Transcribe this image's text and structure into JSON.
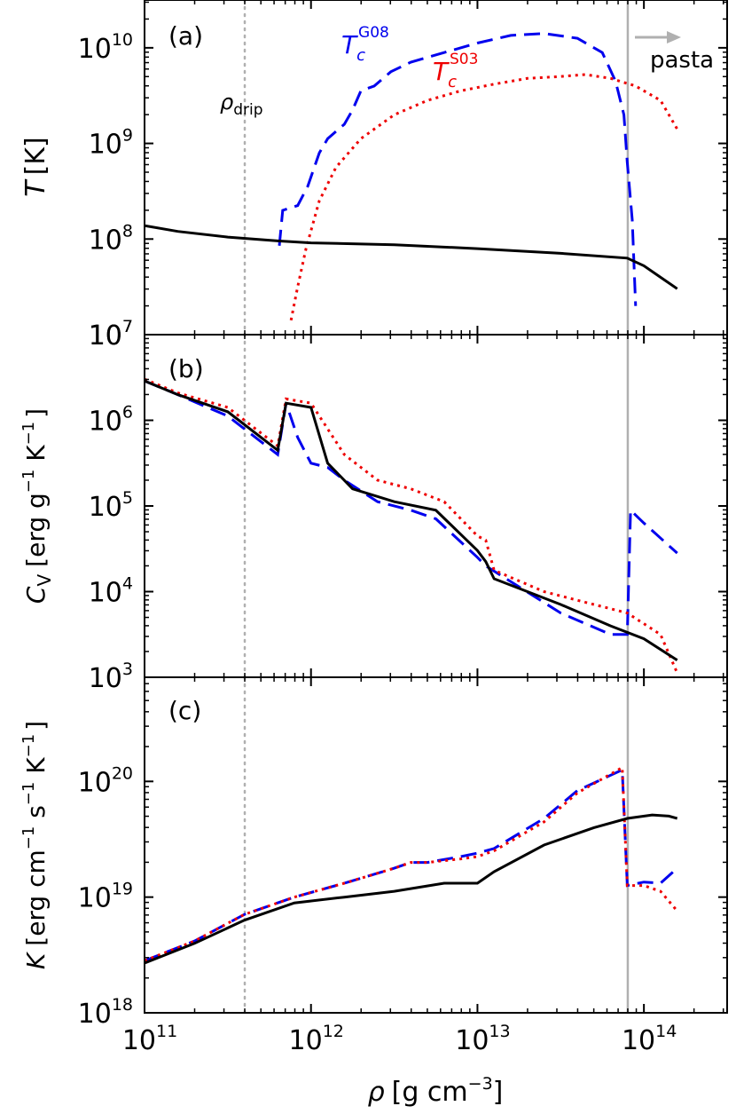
{
  "xlabel": {
    "sym": "ρ",
    "unit": "[g cm",
    "exp": "−3",
    "close": "]"
  },
  "x_ticks": [
    {
      "m": "10",
      "e": "11",
      "v": 11
    },
    {
      "m": "10",
      "e": "12",
      "v": 12
    },
    {
      "m": "10",
      "e": "13",
      "v": 13
    },
    {
      "m": "10",
      "e": "14",
      "v": 14
    }
  ],
  "colors": {
    "total": "#000000",
    "g08": "#0000ee",
    "s03": "#ee0000",
    "pasta": "#b0b0b0",
    "drip": "#b0b0b0"
  },
  "chart_data": [
    {
      "type": "line",
      "panel": "(a)",
      "ylabel": {
        "sym": "T",
        "unit": "[K]"
      },
      "xscale": "log",
      "yscale": "log",
      "xlim_log10": [
        11,
        14.5
      ],
      "ylim_log10": [
        7,
        10.5
      ],
      "y_ticks": [
        {
          "m": "10",
          "e": "7",
          "v": 7
        },
        {
          "m": "10",
          "e": "8",
          "v": 8
        },
        {
          "m": "10",
          "e": "9",
          "v": 9
        },
        {
          "m": "10",
          "e": "10",
          "v": 10
        }
      ],
      "annotations": {
        "drip_label": "ρ",
        "drip_sub": "drip",
        "pasta_label": "pasta",
        "g08_label": "T",
        "g08_sub": "c",
        "g08_sup": "G08",
        "s03_label": "T",
        "s03_sub": "c",
        "s03_sup": "S03"
      },
      "series": [
        {
          "name": "T",
          "style": "solid",
          "points": [
            [
              11,
              8.14
            ],
            [
              11.2,
              8.08
            ],
            [
              11.5,
              8.02
            ],
            [
              11.8,
              7.98
            ],
            [
              12,
              7.96
            ],
            [
              12.5,
              7.94
            ],
            [
              13,
              7.9
            ],
            [
              13.5,
              7.85
            ],
            [
              13.9,
              7.8
            ],
            [
              14.0,
              7.72
            ],
            [
              14.1,
              7.6
            ],
            [
              14.2,
              7.48
            ]
          ]
        },
        {
          "name": "Tc G08",
          "style": "dashed",
          "points": [
            [
              11.81,
              7.93
            ],
            [
              11.83,
              8.3
            ],
            [
              11.92,
              8.35
            ],
            [
              11.98,
              8.55
            ],
            [
              12.05,
              8.9
            ],
            [
              12.1,
              9.05
            ],
            [
              12.2,
              9.2
            ],
            [
              12.25,
              9.35
            ],
            [
              12.3,
              9.55
            ],
            [
              12.38,
              9.6
            ],
            [
              12.48,
              9.75
            ],
            [
              12.6,
              9.85
            ],
            [
              12.8,
              9.95
            ],
            [
              13.0,
              10.05
            ],
            [
              13.2,
              10.13
            ],
            [
              13.4,
              10.15
            ],
            [
              13.6,
              10.1
            ],
            [
              13.75,
              9.95
            ],
            [
              13.83,
              9.65
            ],
            [
              13.88,
              9.3
            ],
            [
              13.9,
              8.8
            ],
            [
              13.93,
              8.2
            ],
            [
              13.95,
              7.3
            ]
          ]
        },
        {
          "name": "Tc S03",
          "style": "dotted",
          "points": [
            [
              11.88,
              7.15
            ],
            [
              11.92,
              7.5
            ],
            [
              11.97,
              7.9
            ],
            [
              12.05,
              8.4
            ],
            [
              12.15,
              8.75
            ],
            [
              12.3,
              9.05
            ],
            [
              12.5,
              9.3
            ],
            [
              12.7,
              9.45
            ],
            [
              12.9,
              9.55
            ],
            [
              13.1,
              9.62
            ],
            [
              13.3,
              9.68
            ],
            [
              13.5,
              9.7
            ],
            [
              13.65,
              9.72
            ],
            [
              13.8,
              9.68
            ],
            [
              13.95,
              9.6
            ],
            [
              14.1,
              9.45
            ],
            [
              14.2,
              9.15
            ]
          ]
        }
      ]
    },
    {
      "type": "line",
      "panel": "(b)",
      "ylabel": {
        "sym": "C",
        "sub": "V",
        "unit": "[erg g",
        "exp1": "−1",
        "unit2": " K",
        "exp2": "−1",
        "close": "]"
      },
      "xscale": "log",
      "yscale": "log",
      "xlim_log10": [
        11,
        14.5
      ],
      "ylim_log10": [
        3,
        7
      ],
      "y_ticks": [
        {
          "m": "10",
          "e": "3",
          "v": 3
        },
        {
          "m": "10",
          "e": "4",
          "v": 4
        },
        {
          "m": "10",
          "e": "5",
          "v": 5
        },
        {
          "m": "10",
          "e": "6",
          "v": 6
        },
        {
          "m": "10",
          "e": "7",
          "v": 7
        }
      ],
      "series": [
        {
          "name": "total",
          "style": "solid",
          "points": [
            [
              11,
              6.46
            ],
            [
              11.2,
              6.3
            ],
            [
              11.5,
              6.1
            ],
            [
              11.8,
              5.65
            ],
            [
              11.85,
              6.2
            ],
            [
              12.0,
              6.15
            ],
            [
              12.1,
              5.5
            ],
            [
              12.25,
              5.2
            ],
            [
              12.5,
              5.05
            ],
            [
              12.75,
              4.95
            ],
            [
              13.0,
              4.48
            ],
            [
              13.05,
              4.35
            ],
            [
              13.1,
              4.15
            ],
            [
              13.5,
              3.85
            ],
            [
              13.8,
              3.6
            ],
            [
              14.0,
              3.45
            ],
            [
              14.2,
              3.2
            ]
          ]
        },
        {
          "name": "G08",
          "style": "dashed",
          "points": [
            [
              11,
              6.46
            ],
            [
              11.2,
              6.3
            ],
            [
              11.5,
              6.05
            ],
            [
              11.8,
              5.6
            ],
            [
              11.85,
              6.2
            ],
            [
              11.92,
              5.8
            ],
            [
              12.0,
              5.5
            ],
            [
              12.1,
              5.45
            ],
            [
              12.2,
              5.3
            ],
            [
              12.4,
              5.05
            ],
            [
              12.6,
              4.95
            ],
            [
              12.75,
              4.85
            ],
            [
              13.0,
              4.4
            ],
            [
              13.05,
              4.3
            ],
            [
              13.5,
              3.75
            ],
            [
              13.8,
              3.5
            ],
            [
              13.9,
              3.5
            ],
            [
              13.92,
              4.95
            ],
            [
              14.0,
              4.8
            ],
            [
              14.2,
              4.45
            ]
          ]
        },
        {
          "name": "S03",
          "style": "dotted",
          "points": [
            [
              11,
              6.48
            ],
            [
              11.2,
              6.32
            ],
            [
              11.5,
              6.15
            ],
            [
              11.8,
              5.7
            ],
            [
              11.85,
              6.25
            ],
            [
              12.0,
              6.2
            ],
            [
              12.2,
              5.6
            ],
            [
              12.4,
              5.3
            ],
            [
              12.6,
              5.2
            ],
            [
              12.8,
              5.05
            ],
            [
              13.0,
              4.65
            ],
            [
              13.05,
              4.6
            ],
            [
              13.1,
              4.25
            ],
            [
              13.4,
              4.0
            ],
            [
              13.7,
              3.85
            ],
            [
              13.9,
              3.75
            ],
            [
              14.1,
              3.5
            ],
            [
              14.2,
              3.05
            ]
          ]
        }
      ]
    },
    {
      "type": "line",
      "panel": "(c)",
      "ylabel": {
        "sym": "K",
        "unit": "[erg cm",
        "exp1": "−1",
        "unit2": " s",
        "exp2": "−1",
        "unit3": " K",
        "exp3": "−1",
        "close": "]"
      },
      "xscale": "log",
      "yscale": "log",
      "xlim_log10": [
        11,
        14.5
      ],
      "ylim_log10": [
        18,
        20.9
      ],
      "y_ticks": [
        {
          "m": "10",
          "e": "18",
          "v": 18
        },
        {
          "m": "10",
          "e": "19",
          "v": 19
        },
        {
          "m": "10",
          "e": "20",
          "v": 20
        }
      ],
      "series": [
        {
          "name": "total",
          "style": "solid",
          "points": [
            [
              11,
              18.43
            ],
            [
              11.3,
              18.6
            ],
            [
              11.6,
              18.8
            ],
            [
              11.9,
              18.95
            ],
            [
              12.2,
              19.0
            ],
            [
              12.5,
              19.05
            ],
            [
              12.8,
              19.12
            ],
            [
              13.0,
              19.12
            ],
            [
              13.1,
              19.22
            ],
            [
              13.4,
              19.45
            ],
            [
              13.7,
              19.6
            ],
            [
              13.9,
              19.68
            ],
            [
              14.05,
              19.71
            ],
            [
              14.15,
              19.7
            ],
            [
              14.2,
              19.68
            ]
          ]
        },
        {
          "name": "G08",
          "style": "dashed",
          "points": [
            [
              11,
              18.45
            ],
            [
              11.3,
              18.62
            ],
            [
              11.6,
              18.85
            ],
            [
              11.9,
              19.0
            ],
            [
              12.2,
              19.12
            ],
            [
              12.5,
              19.25
            ],
            [
              12.6,
              19.3
            ],
            [
              12.7,
              19.3
            ],
            [
              12.9,
              19.35
            ],
            [
              13.0,
              19.38
            ],
            [
              13.1,
              19.42
            ],
            [
              13.4,
              19.68
            ],
            [
              13.6,
              19.92
            ],
            [
              13.87,
              20.1
            ],
            [
              13.9,
              19.1
            ],
            [
              14.0,
              19.13
            ],
            [
              14.1,
              19.12
            ],
            [
              14.2,
              19.25
            ]
          ]
        },
        {
          "name": "S03",
          "style": "dotted",
          "points": [
            [
              11,
              18.45
            ],
            [
              11.3,
              18.62
            ],
            [
              11.6,
              18.85
            ],
            [
              11.9,
              19.0
            ],
            [
              12.2,
              19.12
            ],
            [
              12.5,
              19.25
            ],
            [
              12.6,
              19.3
            ],
            [
              12.7,
              19.3
            ],
            [
              12.9,
              19.33
            ],
            [
              13.0,
              19.35
            ],
            [
              13.1,
              19.4
            ],
            [
              13.4,
              19.65
            ],
            [
              13.6,
              19.9
            ],
            [
              13.87,
              20.12
            ],
            [
              13.9,
              19.1
            ],
            [
              14.0,
              19.1
            ],
            [
              14.1,
              19.05
            ],
            [
              14.2,
              18.88
            ]
          ]
        }
      ]
    }
  ]
}
